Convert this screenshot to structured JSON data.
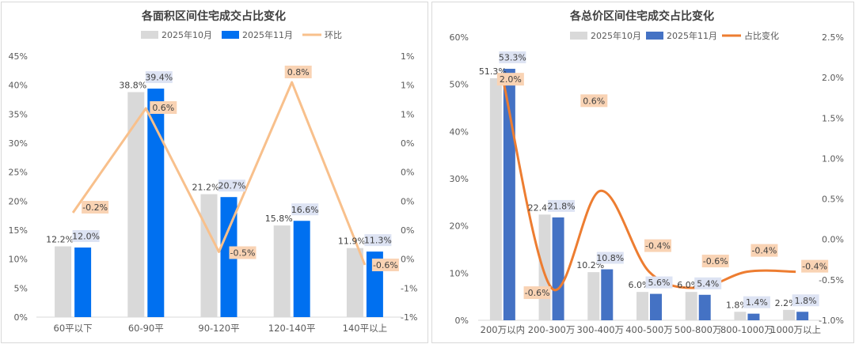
{
  "chart_data": [
    {
      "type": "bar",
      "title": "各面积区间住宅成交占比变化",
      "categories": [
        "60平以下",
        "60-90平",
        "90-120平",
        "120-140平",
        "140平以上"
      ],
      "series": [
        {
          "name": "2025年10月",
          "values": [
            12.2,
            38.8,
            21.2,
            15.8,
            11.9
          ],
          "labels": [
            "12.2%",
            "38.8%",
            "21.2%",
            "15.8%",
            "11.9%"
          ],
          "color": "#d9d9d9"
        },
        {
          "name": "2025年11月",
          "values": [
            12.0,
            39.4,
            20.7,
            16.6,
            11.3
          ],
          "labels": [
            "12.0%",
            "39.4%",
            "20.7%",
            "16.6%",
            "11.3%"
          ],
          "color": "#0070f0"
        }
      ],
      "line": {
        "name": "环比",
        "values": [
          -0.2,
          0.6,
          -0.5,
          0.8,
          -0.6
        ],
        "labels": [
          "-0.2%",
          "0.6%",
          "-0.5%",
          "0.8%",
          "-0.6%"
        ],
        "color": "#f8c08c",
        "smooth": false
      },
      "y_left": {
        "min": 0,
        "max": 45,
        "step": 5,
        "tick_labels": [
          "0%",
          "5%",
          "10%",
          "15%",
          "20%",
          "25%",
          "30%",
          "35%",
          "40%",
          "45%"
        ]
      },
      "y_right": {
        "min": -1.0,
        "max": 1.0,
        "tick_labels": [
          "-1%",
          "-1%",
          "0%",
          "0%",
          "0%",
          "0%",
          "0%",
          "1%",
          "1%",
          "1%"
        ]
      }
    },
    {
      "type": "bar",
      "title": "各总价区间住宅成交占比变化",
      "categories": [
        "200万以内",
        "200-300万",
        "300-400万",
        "400-500万",
        "500-800万",
        "800-1000万",
        "1000万以上"
      ],
      "series": [
        {
          "name": "2025年10月",
          "values": [
            51.3,
            22.4,
            10.2,
            6.0,
            6.0,
            1.8,
            2.2
          ],
          "labels": [
            "51.3%",
            "22.4%",
            "10.2%",
            "6.0%",
            "6.0%",
            "1.8%",
            "2.2%"
          ],
          "color": "#d9d9d9"
        },
        {
          "name": "2025年11月",
          "values": [
            53.3,
            21.8,
            10.8,
            5.6,
            5.4,
            1.4,
            1.8
          ],
          "labels": [
            "53.3%",
            "21.8%",
            "10.8%",
            "5.6%",
            "5.4%",
            "1.4%",
            "1.8%"
          ],
          "color": "#4472c4"
        }
      ],
      "line": {
        "name": "占比变化",
        "values": [
          2.0,
          -0.6,
          0.6,
          -0.4,
          -0.6,
          -0.4,
          -0.4
        ],
        "labels": [
          "2.0%",
          "-0.6%",
          "0.6%",
          "-0.4%",
          "-0.6%",
          "-0.4%",
          "-0.4%"
        ],
        "color": "#ed7d31",
        "smooth": true
      },
      "y_left": {
        "min": 0,
        "max": 60,
        "step": 10,
        "tick_labels": [
          "0%",
          "10%",
          "20%",
          "30%",
          "40%",
          "50%",
          "60%"
        ]
      },
      "y_right": {
        "min": -1.0,
        "max": 2.5,
        "tick_labels": [
          "-1.0%",
          "-0.5%",
          "0.0%",
          "0.5%",
          "1.0%",
          "1.5%",
          "2.0%",
          "2.5%"
        ]
      }
    }
  ]
}
